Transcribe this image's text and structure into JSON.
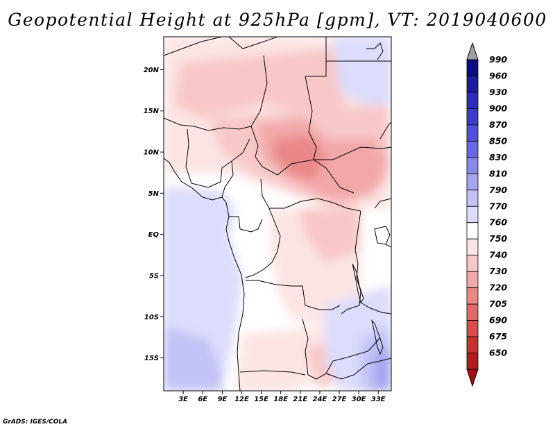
{
  "title": "Geopotential Height at 925hPa [gpm], VT: 2019040600",
  "credit": "GrADS: IGES/COLA",
  "map": {
    "variable": "Geopotential Height",
    "level_hpa": 925,
    "units": "gpm",
    "valid_time": "2019040600",
    "lat_range": [
      -19,
      24
    ],
    "lon_range": [
      0,
      35
    ],
    "lat_ticks": [
      {
        "value": 20,
        "label": "20N"
      },
      {
        "value": 15,
        "label": "15N"
      },
      {
        "value": 10,
        "label": "10N"
      },
      {
        "value": 5,
        "label": "5N"
      },
      {
        "value": 0,
        "label": "EQ"
      },
      {
        "value": -5,
        "label": "5S"
      },
      {
        "value": -10,
        "label": "10S"
      },
      {
        "value": -15,
        "label": "15S"
      }
    ],
    "lon_ticks": [
      {
        "value": 3,
        "label": "3E"
      },
      {
        "value": 6,
        "label": "6E"
      },
      {
        "value": 9,
        "label": "9E"
      },
      {
        "value": 12,
        "label": "12E"
      },
      {
        "value": 15,
        "label": "15E"
      },
      {
        "value": 18,
        "label": "18E"
      },
      {
        "value": 21,
        "label": "21E"
      },
      {
        "value": 24,
        "label": "24E"
      },
      {
        "value": 27,
        "label": "27E"
      },
      {
        "value": 30,
        "label": "30E"
      },
      {
        "value": 33,
        "label": "33E"
      }
    ]
  },
  "colorbar": {
    "levels": [
      {
        "label": "990",
        "color": "#0c0c80"
      },
      {
        "label": "960",
        "color": "#1c1c9c"
      },
      {
        "label": "930",
        "color": "#2c2cb8"
      },
      {
        "label": "900",
        "color": "#3c3cc8"
      },
      {
        "label": "870",
        "color": "#5050d8"
      },
      {
        "label": "850",
        "color": "#6868e2"
      },
      {
        "label": "830",
        "color": "#8888ea"
      },
      {
        "label": "810",
        "color": "#a4a4f0"
      },
      {
        "label": "790",
        "color": "#c2c2f6"
      },
      {
        "label": "770",
        "color": "#dcdcfc"
      },
      {
        "label": "760",
        "color": "#ffffff"
      },
      {
        "label": "750",
        "color": "#fce4e4"
      },
      {
        "label": "740",
        "color": "#f8c8c8"
      },
      {
        "label": "730",
        "color": "#f2a8a8"
      },
      {
        "label": "720",
        "color": "#ea8888"
      },
      {
        "label": "705",
        "color": "#e06a6a"
      },
      {
        "label": "690",
        "color": "#d44c4c"
      },
      {
        "label": "675",
        "color": "#c43232"
      },
      {
        "label": "650",
        "color": "#b01c1c"
      }
    ],
    "top_arrow_color": "#a0a0a0",
    "bottom_arrow_color": "#a01010"
  }
}
